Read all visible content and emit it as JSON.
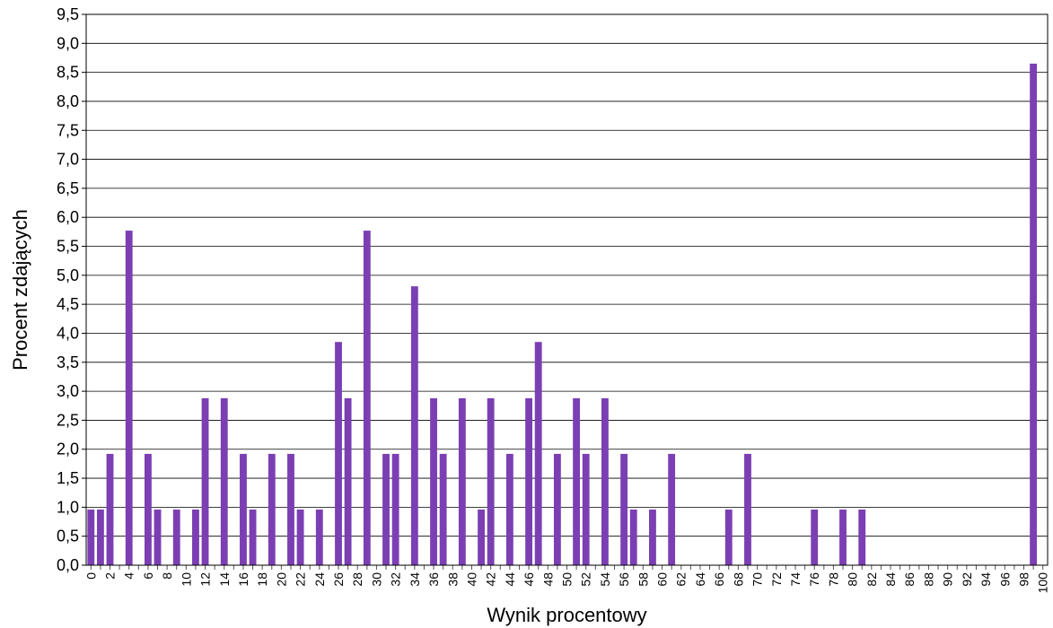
{
  "chart_data": {
    "type": "bar",
    "xlabel": "Wynik procentowy",
    "ylabel": "Procent zdających",
    "ylim": [
      0,
      9.5
    ],
    "grid": true,
    "bar_color": "#7B3FB3",
    "y_ticks": [
      "0,0",
      "0,5",
      "1,0",
      "1,5",
      "2,0",
      "2,5",
      "3,0",
      "3,5",
      "4,0",
      "4,5",
      "5,0",
      "5,5",
      "6,0",
      "6,5",
      "7,0",
      "7,5",
      "8,0",
      "8,5",
      "9,0",
      "9,5"
    ],
    "x_tick_labels": [
      "0",
      "2",
      "4",
      "6",
      "8",
      "10",
      "12",
      "14",
      "16",
      "18",
      "20",
      "22",
      "24",
      "26",
      "28",
      "30",
      "32",
      "34",
      "36",
      "38",
      "40",
      "42",
      "44",
      "46",
      "48",
      "50",
      "52",
      "54",
      "56",
      "58",
      "60",
      "62",
      "64",
      "66",
      "68",
      "70",
      "72",
      "74",
      "76",
      "78",
      "80",
      "82",
      "84",
      "86",
      "88",
      "90",
      "92",
      "94",
      "96",
      "98",
      "100"
    ],
    "categories": [
      0,
      1,
      2,
      3,
      4,
      5,
      6,
      7,
      8,
      9,
      10,
      11,
      12,
      13,
      14,
      15,
      16,
      17,
      18,
      19,
      20,
      21,
      22,
      23,
      24,
      25,
      26,
      27,
      28,
      29,
      30,
      31,
      32,
      33,
      34,
      35,
      36,
      37,
      38,
      39,
      40,
      41,
      42,
      43,
      44,
      45,
      46,
      47,
      48,
      49,
      50,
      51,
      52,
      53,
      54,
      55,
      56,
      57,
      58,
      59,
      60,
      61,
      62,
      63,
      64,
      65,
      66,
      67,
      68,
      69,
      70,
      71,
      72,
      73,
      74,
      75,
      76,
      77,
      78,
      79,
      80,
      81,
      82,
      83,
      84,
      85,
      86,
      87,
      88,
      89,
      90,
      91,
      92,
      93,
      94,
      95,
      96,
      97,
      98,
      99,
      100
    ],
    "values": [
      0.96,
      0.96,
      1.92,
      0,
      5.77,
      0,
      1.92,
      0.96,
      0,
      0.96,
      0,
      0.96,
      2.88,
      0,
      2.88,
      0,
      1.92,
      0.96,
      0,
      1.92,
      0,
      1.92,
      0.96,
      0,
      0.96,
      0,
      3.85,
      2.88,
      0,
      5.77,
      0,
      1.92,
      1.92,
      0,
      4.81,
      0,
      2.88,
      1.92,
      0,
      2.88,
      0,
      0.96,
      2.88,
      0,
      1.92,
      0,
      2.88,
      3.85,
      0,
      1.92,
      0,
      2.88,
      1.92,
      0,
      2.88,
      0,
      1.92,
      0.96,
      0,
      0.96,
      0,
      1.92,
      0,
      0,
      0,
      0,
      0,
      0.96,
      0,
      1.92,
      0,
      0,
      0,
      0,
      0,
      0,
      0.96,
      0,
      0,
      0.96,
      0,
      0.96,
      0,
      0,
      0,
      0,
      0,
      0,
      0,
      0,
      0,
      0,
      0,
      0,
      0,
      0,
      0,
      0,
      0,
      8.65,
      0
    ]
  }
}
